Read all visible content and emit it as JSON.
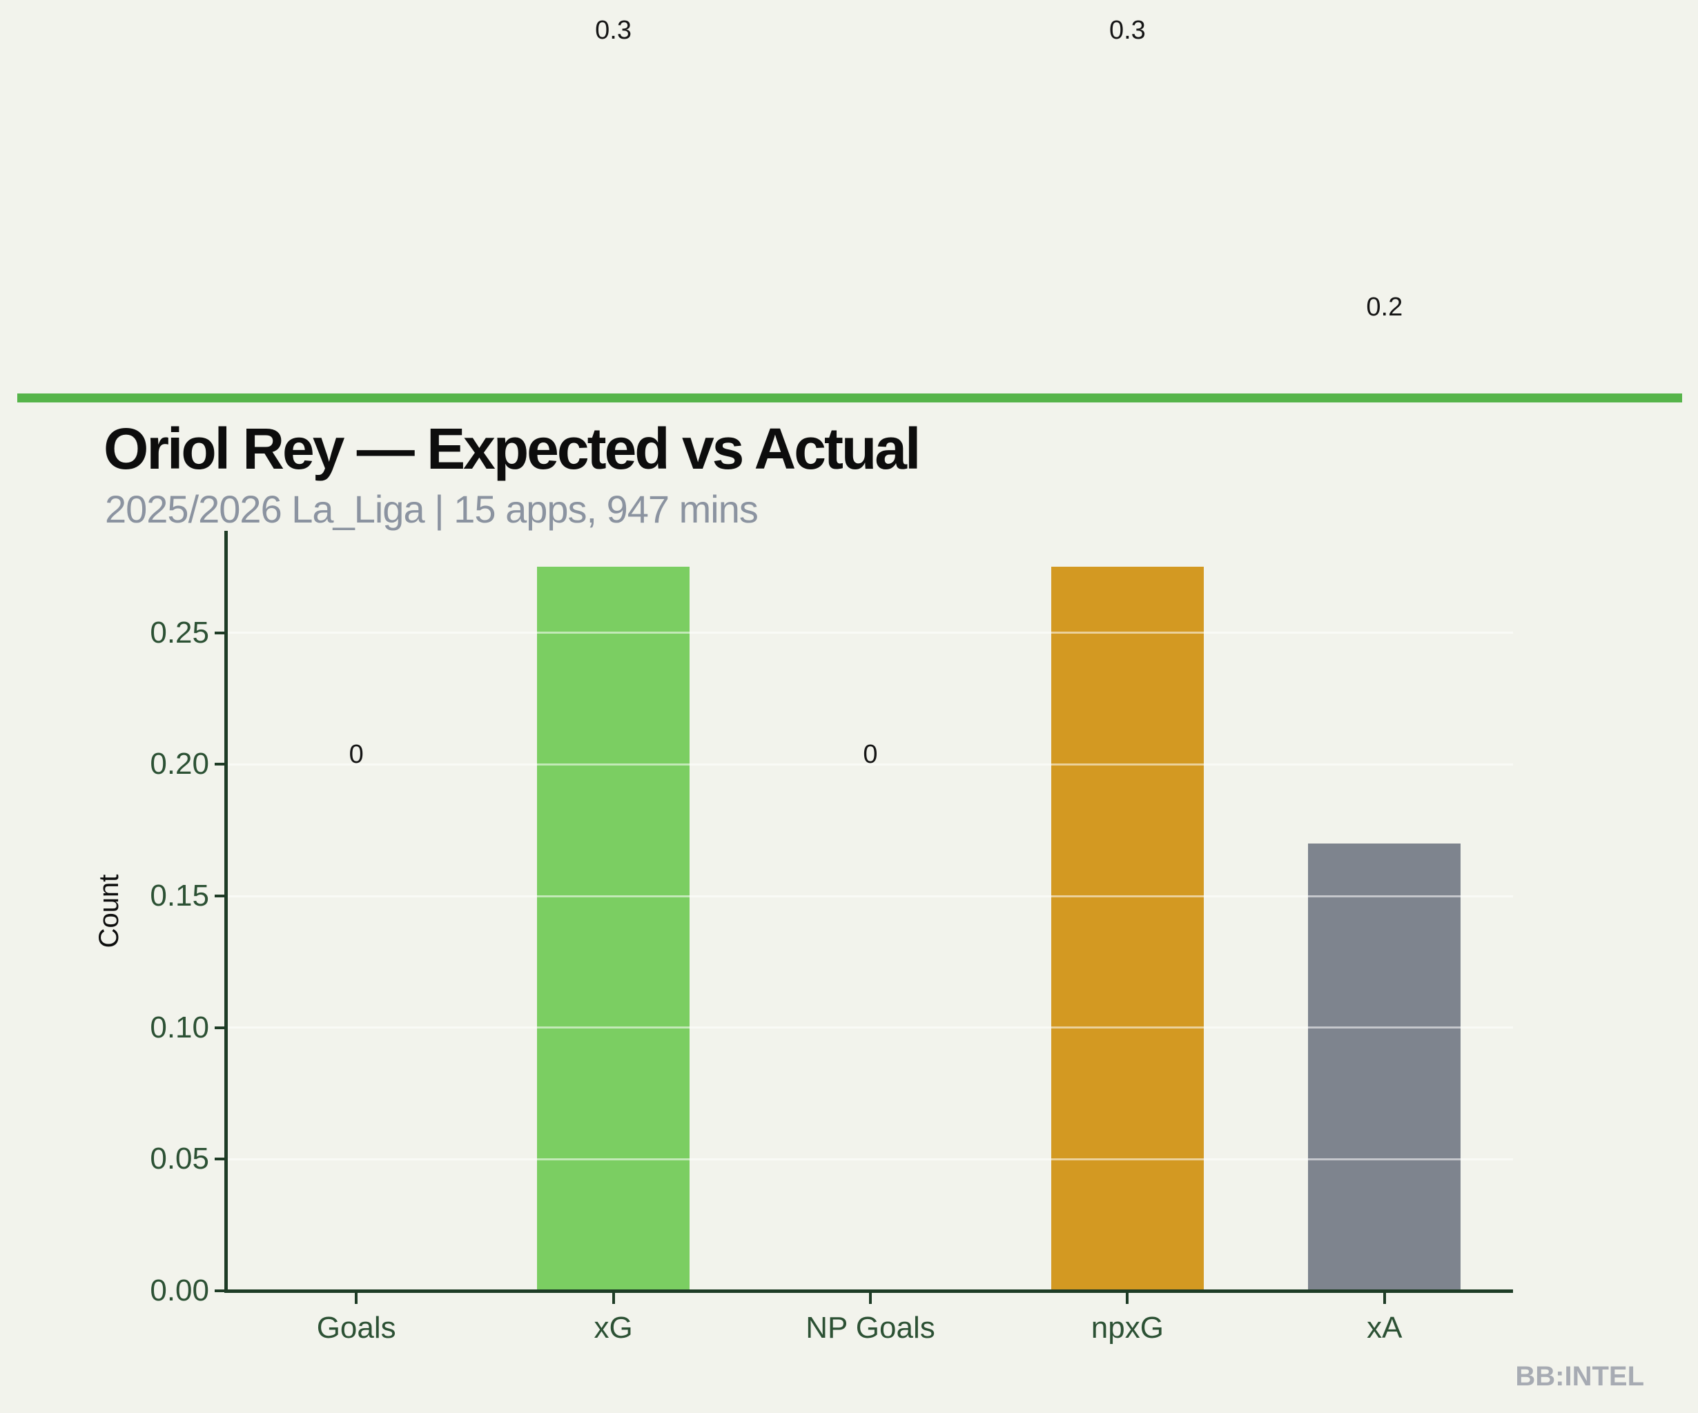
{
  "header": {
    "title": "Oriol Rey — Expected vs Actual",
    "subtitle": "2025/2026 La_Liga | 15 apps, 947 mins"
  },
  "watermark": "BB:INTEL",
  "colors": {
    "background": "#f2f3ec",
    "accent_line_green": "#56b44a",
    "axis_spine_green": "#1e3c26",
    "tick_label_green": "#2c5134",
    "title_black": "#0d0d0d",
    "subtitle_gray": "#8b93a0",
    "value_label_black": "#151515",
    "watermark_gray": "#a7abb3",
    "bar_green": "#7bce62",
    "bar_orange": "#d39922",
    "bar_gray": "#7e848e"
  },
  "chart_data": {
    "type": "bar",
    "title": "Oriol Rey — Expected vs Actual",
    "subtitle": "2025/2026 La_Liga | 15 apps, 947 mins",
    "categories": [
      "Goals",
      "xG",
      "NP Goals",
      "npxG",
      "xA"
    ],
    "values": [
      0,
      0.275,
      0,
      0.275,
      0.17
    ],
    "value_labels": [
      "0",
      "0.3",
      "0",
      "0.3",
      "0.2"
    ],
    "bar_colors": [
      "#7bce62",
      "#7bce62",
      "#d39922",
      "#d39922",
      "#7e848e"
    ],
    "xlabel": "",
    "ylabel": "Count",
    "ylim": [
      0,
      0.28875
    ],
    "yticks": [
      0,
      0.05,
      0.1,
      0.15,
      0.2,
      0.25
    ],
    "ytick_labels": [
      "0.00",
      "0.05",
      "0.10",
      "0.15",
      "0.20",
      "0.25"
    ],
    "grid": true,
    "legend": null
  }
}
